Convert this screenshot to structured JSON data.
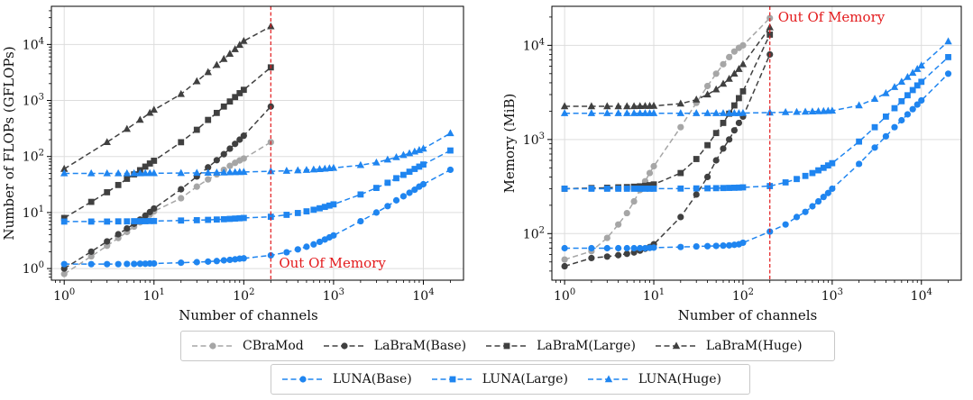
{
  "colors": {
    "cbramod": "#a6a6a6",
    "labram": "#404040",
    "luna": "#1f85f0",
    "oom": "#e31a1c",
    "grid": "#dddddd"
  },
  "chart_data": [
    {
      "type": "line",
      "scale": "log-log",
      "xlabel": "Number of channels",
      "ylabel": "Number of FLOPs (GFLOPs)",
      "xlim": [
        0.72,
        28000
      ],
      "ylim": [
        0.62,
        48000
      ],
      "grid": true,
      "oom_x": 200,
      "oom_label": "Out Of Memory",
      "oom_label_anchor": "bottom",
      "series": [
        {
          "name": "CBraMod",
          "key": "cbramod",
          "marker": "circle",
          "x": [
            1,
            2,
            3,
            4,
            5,
            6,
            7,
            8,
            9,
            10,
            20,
            30,
            40,
            50,
            60,
            70,
            80,
            90,
            100,
            200
          ],
          "y": [
            0.8,
            1.65,
            2.55,
            3.5,
            4.5,
            5.6,
            6.7,
            7.9,
            9.2,
            10.5,
            18,
            29,
            39,
            48,
            58,
            68,
            77,
            85,
            92,
            180
          ]
        },
        {
          "name": "LaBraM(Base)",
          "key": "labram",
          "marker": "circle",
          "x": [
            1,
            2,
            3,
            4,
            5,
            6,
            7,
            8,
            9,
            10,
            20,
            30,
            40,
            50,
            60,
            70,
            80,
            90,
            100,
            200
          ],
          "y": [
            1.0,
            2.0,
            3.05,
            4.1,
            5.2,
            6.3,
            7.5,
            8.8,
            10.2,
            11.8,
            26,
            44,
            64,
            86,
            110,
            138,
            168,
            200,
            235,
            780
          ]
        },
        {
          "name": "LaBraM(Large)",
          "key": "labram",
          "marker": "square",
          "x": [
            1,
            2,
            3,
            4,
            5,
            6,
            7,
            8,
            9,
            10,
            20,
            30,
            40,
            50,
            60,
            70,
            80,
            90,
            100,
            200
          ],
          "y": [
            8,
            15.5,
            23,
            31,
            40,
            48,
            57,
            66,
            75,
            84,
            180,
            300,
            450,
            600,
            780,
            960,
            1150,
            1350,
            1550,
            3900
          ]
        },
        {
          "name": "LaBraM(Huge)",
          "key": "labram",
          "marker": "triangle",
          "x": [
            1,
            3,
            5,
            7,
            9,
            10,
            20,
            30,
            40,
            50,
            60,
            70,
            80,
            90,
            100,
            200
          ],
          "y": [
            60,
            180,
            310,
            450,
            600,
            680,
            1300,
            2200,
            3200,
            4300,
            5500,
            6800,
            8200,
            9800,
            11500,
            21000
          ]
        },
        {
          "name": "LUNA(Base)",
          "key": "luna",
          "marker": "circle",
          "x": [
            1,
            2,
            3,
            4,
            5,
            6,
            7,
            8,
            9,
            10,
            20,
            30,
            40,
            50,
            60,
            70,
            80,
            90,
            100,
            200,
            300,
            400,
            500,
            600,
            700,
            800,
            900,
            1000,
            2000,
            3000,
            4000,
            5000,
            6000,
            7000,
            8000,
            9000,
            10000,
            20000
          ],
          "y": [
            1.2,
            1.2,
            1.2,
            1.2,
            1.21,
            1.21,
            1.22,
            1.22,
            1.23,
            1.23,
            1.27,
            1.3,
            1.33,
            1.36,
            1.4,
            1.43,
            1.46,
            1.5,
            1.52,
            1.72,
            1.95,
            2.2,
            2.45,
            2.7,
            3.0,
            3.3,
            3.6,
            3.9,
            7,
            10,
            13,
            16.5,
            19.5,
            22.5,
            25.5,
            29,
            32,
            58
          ]
        },
        {
          "name": "LUNA(Large)",
          "key": "luna",
          "marker": "square",
          "x": [
            1,
            2,
            3,
            4,
            5,
            6,
            7,
            8,
            9,
            10,
            20,
            30,
            40,
            50,
            60,
            70,
            80,
            90,
            100,
            200,
            300,
            400,
            500,
            600,
            700,
            800,
            900,
            1000,
            2000,
            3000,
            4000,
            5000,
            6000,
            7000,
            8000,
            9000,
            10000,
            20000
          ],
          "y": [
            6.9,
            6.9,
            6.9,
            6.95,
            6.95,
            7.0,
            7.0,
            7.0,
            7.05,
            7.05,
            7.2,
            7.3,
            7.4,
            7.5,
            7.6,
            7.7,
            7.8,
            7.9,
            8.0,
            8.4,
            9.1,
            9.8,
            10.5,
            11.2,
            11.9,
            12.6,
            13.3,
            14,
            21,
            27.5,
            34,
            41,
            47,
            53.5,
            60,
            66,
            72,
            128
          ]
        },
        {
          "name": "LUNA(Huge)",
          "key": "luna",
          "marker": "triangle",
          "x": [
            1,
            2,
            3,
            4,
            5,
            6,
            7,
            8,
            9,
            10,
            20,
            30,
            40,
            50,
            60,
            70,
            80,
            90,
            100,
            200,
            300,
            400,
            500,
            600,
            700,
            800,
            900,
            1000,
            2000,
            3000,
            4000,
            5000,
            6000,
            7000,
            8000,
            9000,
            10000,
            20000
          ],
          "y": [
            50,
            50,
            50,
            50,
            50,
            50,
            50,
            50.2,
            50.3,
            50.3,
            50.6,
            50.9,
            51.2,
            51.5,
            51.8,
            52.1,
            52.4,
            52.7,
            53,
            54.5,
            55.5,
            56.5,
            57.5,
            58.5,
            59.5,
            60.5,
            61.5,
            62.5,
            70,
            78,
            88,
            97,
            106,
            114,
            122,
            130,
            138,
            260
          ]
        }
      ]
    },
    {
      "type": "line",
      "scale": "log-log",
      "xlabel": "Number of channels",
      "ylabel": "Memory (MiB)",
      "xlim": [
        0.72,
        28000
      ],
      "ylim": [
        32,
        26000
      ],
      "grid": true,
      "oom_x": 200,
      "oom_label": "Out Of Memory",
      "oom_label_anchor": "top",
      "series": [
        {
          "name": "CBraMod",
          "key": "cbramod",
          "marker": "circle",
          "x": [
            1,
            2,
            3,
            4,
            5,
            6,
            7,
            8,
            9,
            10,
            20,
            30,
            40,
            50,
            60,
            70,
            80,
            90,
            100,
            200
          ],
          "y": [
            53,
            65,
            90,
            125,
            165,
            220,
            290,
            360,
            440,
            520,
            1350,
            2450,
            3700,
            5000,
            6300,
            7500,
            8600,
            9400,
            10000,
            19500
          ]
        },
        {
          "name": "LaBraM(Base)",
          "key": "labram",
          "marker": "circle",
          "x": [
            1,
            2,
            3,
            4,
            5,
            6,
            7,
            8,
            9,
            10,
            20,
            30,
            40,
            50,
            60,
            70,
            80,
            90,
            100,
            200
          ],
          "y": [
            45,
            55,
            57,
            59,
            61,
            63,
            66,
            69,
            72,
            77,
            150,
            260,
            400,
            600,
            800,
            1000,
            1250,
            1500,
            1750,
            8000
          ]
        },
        {
          "name": "LaBraM(Large)",
          "key": "labram",
          "marker": "square",
          "x": [
            1,
            2,
            3,
            4,
            5,
            6,
            7,
            8,
            9,
            10,
            20,
            30,
            40,
            50,
            60,
            70,
            80,
            90,
            100,
            200
          ],
          "y": [
            300,
            305,
            307,
            310,
            312,
            315,
            318,
            322,
            327,
            333,
            440,
            620,
            870,
            1170,
            1500,
            1880,
            2300,
            2750,
            3250,
            13000
          ]
        },
        {
          "name": "LaBraM(Huge)",
          "key": "labram",
          "marker": "triangle",
          "x": [
            1,
            2,
            3,
            4,
            5,
            6,
            7,
            8,
            9,
            10,
            20,
            30,
            40,
            50,
            60,
            70,
            80,
            90,
            100,
            200
          ],
          "y": [
            2250,
            2250,
            2250,
            2250,
            2250,
            2255,
            2260,
            2265,
            2270,
            2275,
            2400,
            2650,
            3000,
            3400,
            3900,
            4400,
            5000,
            5600,
            6300,
            15500
          ]
        },
        {
          "name": "LUNA(Base)",
          "key": "luna",
          "marker": "circle",
          "x": [
            1,
            2,
            3,
            4,
            5,
            6,
            7,
            8,
            9,
            10,
            20,
            30,
            40,
            50,
            60,
            70,
            80,
            90,
            100,
            200,
            300,
            400,
            500,
            600,
            700,
            800,
            900,
            1000,
            2000,
            3000,
            4000,
            5000,
            6000,
            7000,
            8000,
            9000,
            10000,
            20000
          ],
          "y": [
            70,
            70,
            70,
            70,
            70,
            70,
            70,
            70,
            70.5,
            71,
            72,
            73,
            73.5,
            74,
            74.5,
            75,
            76,
            77,
            80,
            105,
            125,
            150,
            170,
            195,
            220,
            245,
            270,
            300,
            550,
            820,
            1080,
            1350,
            1600,
            1850,
            2100,
            2350,
            2600,
            5000
          ]
        },
        {
          "name": "LUNA(Large)",
          "key": "luna",
          "marker": "square",
          "x": [
            1,
            2,
            3,
            4,
            5,
            6,
            7,
            8,
            9,
            10,
            20,
            30,
            40,
            50,
            60,
            70,
            80,
            90,
            100,
            200,
            300,
            400,
            500,
            600,
            700,
            800,
            900,
            1000,
            2000,
            3000,
            4000,
            5000,
            6000,
            7000,
            8000,
            9000,
            10000,
            20000
          ],
          "y": [
            300,
            300,
            300,
            300,
            300,
            300,
            300,
            300,
            300,
            300,
            301,
            302,
            303,
            304,
            305,
            306,
            307,
            308,
            310,
            320,
            350,
            380,
            410,
            440,
            470,
            500,
            530,
            560,
            950,
            1350,
            1750,
            2150,
            2550,
            2950,
            3350,
            3750,
            4100,
            7500
          ]
        },
        {
          "name": "LUNA(Huge)",
          "key": "luna",
          "marker": "triangle",
          "x": [
            1,
            2,
            3,
            4,
            5,
            6,
            7,
            8,
            9,
            10,
            20,
            30,
            40,
            50,
            60,
            70,
            80,
            90,
            100,
            200,
            300,
            400,
            500,
            600,
            700,
            800,
            900,
            1000,
            2000,
            3000,
            4000,
            5000,
            6000,
            7000,
            8000,
            9000,
            10000,
            20000
          ],
          "y": [
            1900,
            1900,
            1900,
            1900,
            1900,
            1900,
            1900,
            1900,
            1900,
            1900,
            1900,
            1900,
            1900,
            1900,
            1900,
            1900,
            1900,
            1900,
            1910,
            1930,
            1950,
            1960,
            1970,
            1980,
            1990,
            2000,
            2010,
            2020,
            2300,
            2700,
            3100,
            3600,
            4100,
            4600,
            5100,
            5600,
            6100,
            11000
          ]
        }
      ]
    }
  ],
  "legend": {
    "row1": [
      {
        "label": "CBraMod",
        "key": "cbramod",
        "marker": "circle"
      },
      {
        "label": "LaBraM(Base)",
        "key": "labram",
        "marker": "circle"
      },
      {
        "label": "LaBraM(Large)",
        "key": "labram",
        "marker": "square"
      },
      {
        "label": "LaBraM(Huge)",
        "key": "labram",
        "marker": "triangle"
      }
    ],
    "row2": [
      {
        "label": "LUNA(Base)",
        "key": "luna",
        "marker": "circle"
      },
      {
        "label": "LUNA(Large)",
        "key": "luna",
        "marker": "square"
      },
      {
        "label": "LUNA(Huge)",
        "key": "luna",
        "marker": "triangle"
      }
    ]
  }
}
